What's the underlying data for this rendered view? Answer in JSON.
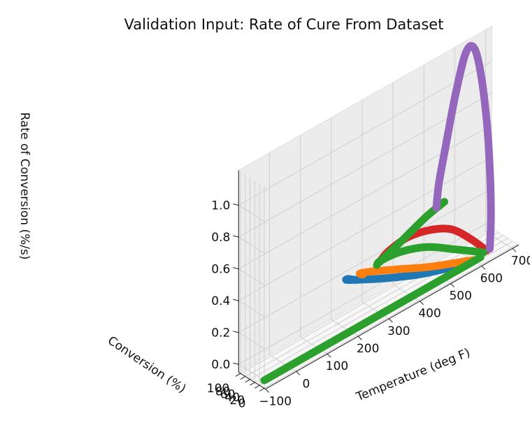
{
  "chart_data": {
    "type": "line3d",
    "title": "Validation Input: Rate of Cure From Dataset",
    "xlabel": "Temperature (deg F)",
    "ylabel": "Conversion (%)",
    "zlabel": "Rate of Conversion (%/s)",
    "x_ticks": [
      "−100",
      "0",
      "100",
      "200",
      "300",
      "400",
      "500",
      "600",
      "700"
    ],
    "y_ticks": [
      "0",
      "20",
      "40",
      "60",
      "80",
      "100"
    ],
    "z_ticks": [
      "0.0",
      "0.2",
      "0.4",
      "0.6",
      "0.8",
      "1.0"
    ],
    "grid": true,
    "view": "3d perspective",
    "series": [
      {
        "color": "#1f77b4",
        "points": [
          [
            555,
            0,
            0.01
          ],
          [
            430,
            25,
            0.06
          ],
          [
            330,
            50,
            0.12
          ],
          [
            260,
            70,
            0.17
          ],
          [
            230,
            82,
            0.19
          ],
          [
            240,
            88,
            0.18
          ],
          [
            262,
            86,
            0.15
          ]
        ]
      },
      {
        "color": "#ff7f0e",
        "points": [
          [
            575,
            0,
            0.01
          ],
          [
            460,
            28,
            0.07
          ],
          [
            370,
            52,
            0.13
          ],
          [
            305,
            72,
            0.17
          ],
          [
            275,
            84,
            0.18
          ],
          [
            285,
            86,
            0.16
          ]
        ]
      },
      {
        "color": "#d62728",
        "points": [
          [
            620,
            0,
            0.02
          ],
          [
            590,
            25,
            0.1
          ],
          [
            545,
            50,
            0.19
          ],
          [
            490,
            68,
            0.23
          ],
          [
            425,
            82,
            0.24
          ],
          [
            370,
            88,
            0.21
          ],
          [
            340,
            86,
            0.18
          ]
        ]
      },
      {
        "color": "#2ca02c",
        "points": [
          [
            610,
            0,
            0.02
          ],
          [
            540,
            28,
            0.09
          ],
          [
            470,
            52,
            0.16
          ],
          [
            400,
            72,
            0.19
          ],
          [
            340,
            82,
            0.19
          ],
          [
            330,
            85,
            0.17
          ]
        ]
      },
      {
        "color": "#2ca02c",
        "points": [
          [
            600,
            0,
            0.0
          ],
          [
            400,
            0,
            0.0
          ],
          [
            150,
            0,
            0.0
          ],
          [
            -100,
            0,
            0.0
          ]
        ]
      },
      {
        "color": "#2ca02c",
        "points": [
          [
            340,
            85,
            0.18
          ],
          [
            420,
            94,
            0.22
          ],
          [
            500,
            100,
            0.27
          ],
          [
            560,
            100,
            0.3
          ]
        ]
      },
      {
        "color": "#9467bd",
        "points": [
          [
            630,
            0,
            0.02
          ],
          [
            640,
            8,
            0.2
          ],
          [
            650,
            25,
            0.45
          ],
          [
            655,
            45,
            0.75
          ],
          [
            650,
            65,
            1.05
          ],
          [
            640,
            80,
            1.2
          ],
          [
            620,
            88,
            1.18
          ],
          [
            590,
            92,
            0.95
          ],
          [
            560,
            95,
            0.65
          ],
          [
            540,
            96,
            0.45
          ],
          [
            530,
            95,
            0.3
          ]
        ]
      }
    ]
  }
}
